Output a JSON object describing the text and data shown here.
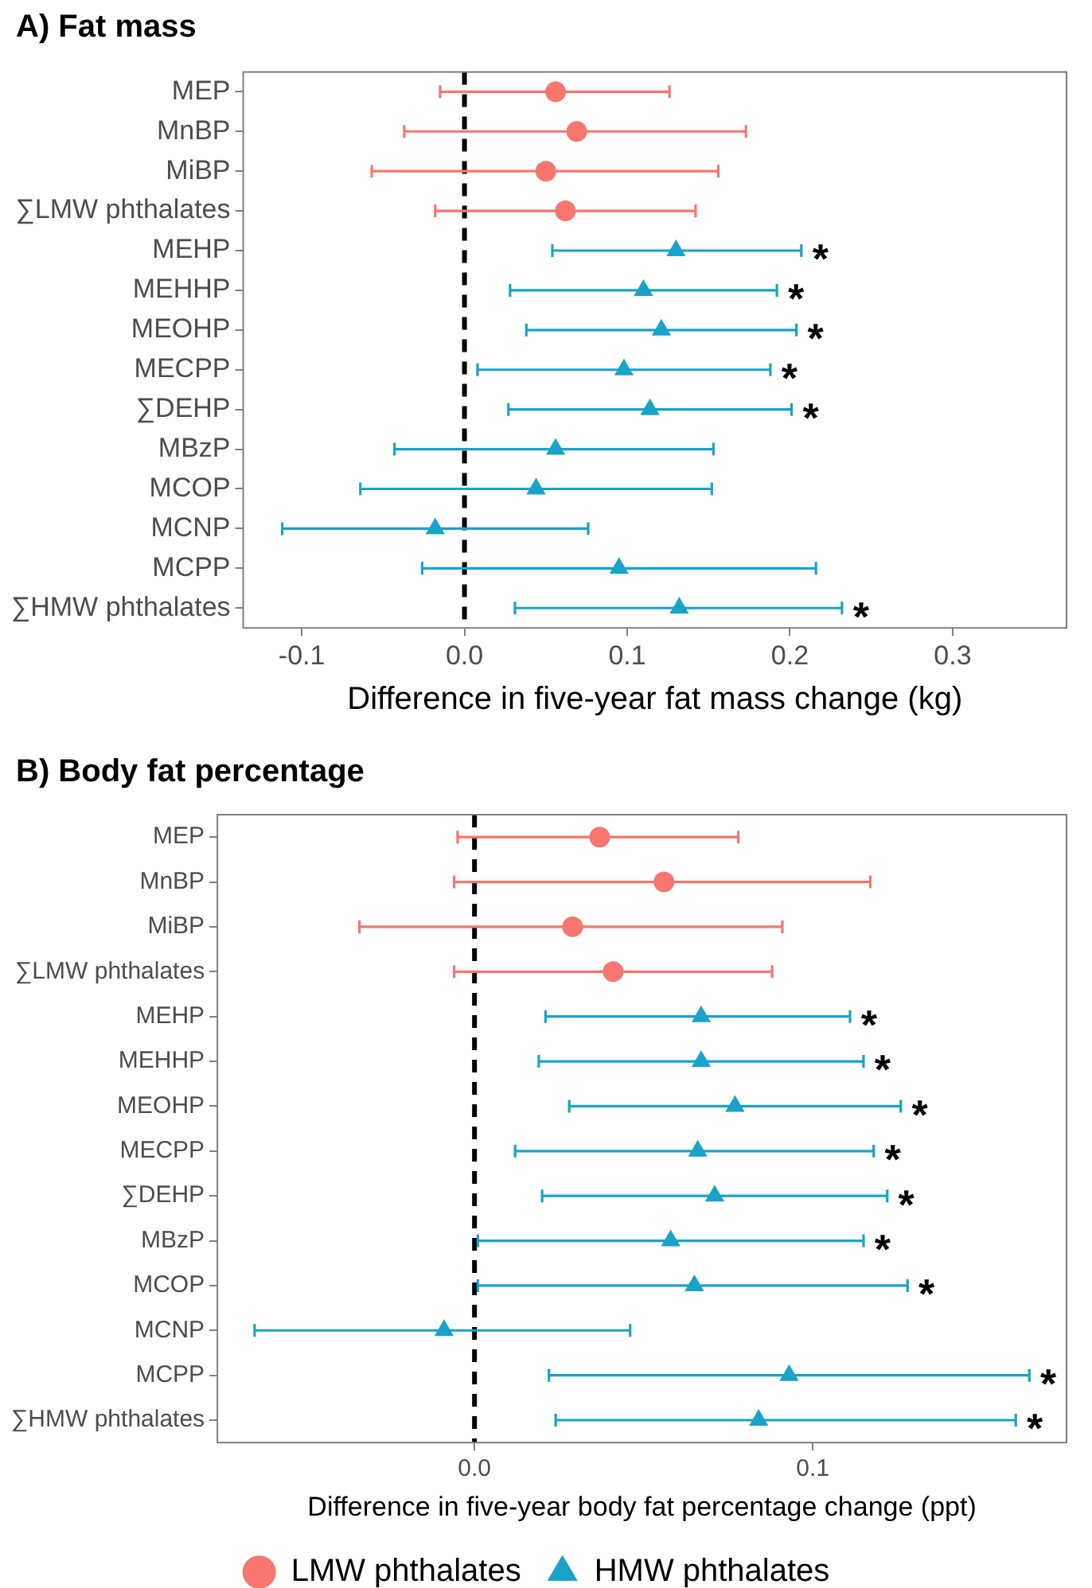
{
  "chart_data": [
    {
      "type": "scatter",
      "orientation": "horizontal",
      "title": "A) Fat mass",
      "xlabel": "Difference in five-year fat mass change (kg)",
      "categories": [
        "MEP",
        "MnBP",
        "MiBP",
        "∑LMW phthalates",
        "MEHP",
        "MEHHP",
        "MEOHP",
        "MECPP",
        "∑DEHP",
        "MBzP",
        "MCOP",
        "MCNP",
        "MCPP",
        "∑HMW phthalates"
      ],
      "series": [
        {
          "color": "#f8766d",
          "marker": "circle",
          "values": [
            0.056,
            0.069,
            0.05,
            0.062,
            null,
            null,
            null,
            null,
            null,
            null,
            null,
            null,
            null,
            null
          ],
          "errors": [
            [
              -0.015,
              0.126
            ],
            [
              -0.037,
              0.173
            ],
            [
              -0.057,
              0.156
            ],
            [
              -0.018,
              0.142
            ],
            null,
            null,
            null,
            null,
            null,
            null,
            null,
            null,
            null,
            null
          ]
        },
        {
          "color": "#1aa3c9",
          "marker": "triangle",
          "values": [
            null,
            null,
            null,
            null,
            0.13,
            0.11,
            0.121,
            0.098,
            0.114,
            0.056,
            0.044,
            -0.018,
            0.095,
            0.132
          ],
          "errors": [
            null,
            null,
            null,
            null,
            [
              0.054,
              0.207
            ],
            [
              0.028,
              0.192
            ],
            [
              0.038,
              0.204
            ],
            [
              0.008,
              0.188
            ],
            [
              0.027,
              0.201
            ],
            [
              -0.043,
              0.153
            ],
            [
              -0.064,
              0.152
            ],
            [
              -0.112,
              0.076
            ],
            [
              -0.026,
              0.216
            ],
            [
              0.031,
              0.232
            ]
          ]
        }
      ],
      "annotations": [
        {
          "text": "*",
          "x": 0.207,
          "y": "MEHP"
        },
        {
          "text": "*",
          "x": 0.192,
          "y": "MEHHP"
        },
        {
          "text": "*",
          "x": 0.204,
          "y": "MEOHP"
        },
        {
          "text": "*",
          "x": 0.188,
          "y": "MECPP"
        },
        {
          "text": "*",
          "x": 0.201,
          "y": "∑DEHP"
        },
        {
          "text": "*",
          "x": 0.232,
          "y": "∑HMW phthalates"
        }
      ],
      "xlim": [
        -0.136,
        0.37
      ],
      "xticks": [
        -0.1,
        {
          "value": 0,
          "label": "0.0"
        },
        0.1,
        0.2,
        0.3
      ],
      "ref_lines": [
        {
          "axis": "x",
          "value": 0,
          "color": "#000000",
          "line_style": "dashed"
        }
      ],
      "grid": false,
      "legend": false
    },
    {
      "type": "scatter",
      "orientation": "horizontal",
      "title": "B) Body fat percentage",
      "xlabel": "Difference in five-year body fat percentage change (ppt)",
      "categories": [
        "MEP",
        "MnBP",
        "MiBP",
        "∑LMW phthalates",
        "MEHP",
        "MEHHP",
        "MEOHP",
        "MECPP",
        "∑DEHP",
        "MBzP",
        "MCOP",
        "MCNP",
        "MCPP",
        "∑HMW phthalates"
      ],
      "series": [
        {
          "name": "LMW phthalates",
          "color": "#f8766d",
          "marker": "circle",
          "values": [
            0.037,
            0.056,
            0.029,
            0.041,
            null,
            null,
            null,
            null,
            null,
            null,
            null,
            null,
            null,
            null
          ],
          "errors": [
            [
              -0.005,
              0.078
            ],
            [
              -0.006,
              0.117
            ],
            [
              -0.034,
              0.091
            ],
            [
              -0.006,
              0.088
            ],
            null,
            null,
            null,
            null,
            null,
            null,
            null,
            null,
            null,
            null
          ]
        },
        {
          "name": "HMW phthalates",
          "color": "#1aa3c9",
          "marker": "triangle",
          "values": [
            null,
            null,
            null,
            null,
            0.067,
            0.067,
            0.077,
            0.066,
            0.071,
            0.058,
            0.065,
            -0.009,
            0.093,
            0.084
          ],
          "errors": [
            null,
            null,
            null,
            null,
            [
              0.021,
              0.111
            ],
            [
              0.019,
              0.115
            ],
            [
              0.028,
              0.126
            ],
            [
              0.012,
              0.118
            ],
            [
              0.02,
              0.122
            ],
            [
              0.001,
              0.115
            ],
            [
              0.001,
              0.128
            ],
            [
              -0.065,
              0.046
            ],
            [
              0.022,
              0.164
            ],
            [
              0.024,
              0.16
            ]
          ]
        }
      ],
      "annotations": [
        {
          "text": "*",
          "x": 0.111,
          "y": "MEHP"
        },
        {
          "text": "*",
          "x": 0.115,
          "y": "MEHHP"
        },
        {
          "text": "*",
          "x": 0.126,
          "y": "MEOHP"
        },
        {
          "text": "*",
          "x": 0.118,
          "y": "MECPP"
        },
        {
          "text": "*",
          "x": 0.122,
          "y": "∑DEHP"
        },
        {
          "text": "*",
          "x": 0.115,
          "y": "MBzP"
        },
        {
          "text": "*",
          "x": 0.128,
          "y": "MCOP"
        },
        {
          "text": "*",
          "x": 0.164,
          "y": "MCPP"
        },
        {
          "text": "*",
          "x": 0.16,
          "y": "∑HMW phthalates"
        }
      ],
      "xlim": [
        -0.076,
        0.175
      ],
      "xticks": [
        {
          "value": 0,
          "label": "0.0"
        },
        0.1
      ],
      "ref_lines": [
        {
          "axis": "x",
          "value": 0,
          "color": "#000000",
          "line_style": "dashed"
        }
      ],
      "grid": false,
      "legend": "bottom"
    }
  ]
}
